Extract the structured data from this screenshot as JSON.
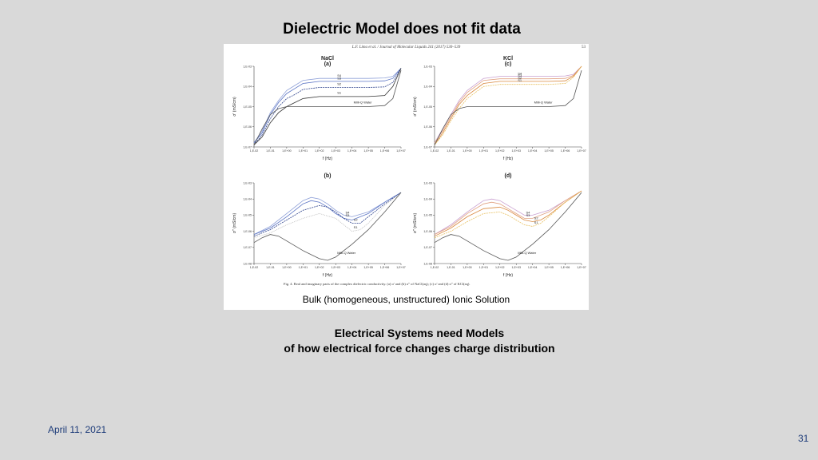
{
  "slide": {
    "title": "Dielectric Model does not fit data",
    "date": "April 11, 2021",
    "number": "31"
  },
  "figure": {
    "journal_header": "L.F. Lima et al. / Journal of Molecular Liquids 241 (2017) 530–539",
    "page": "53",
    "caption": "Fig. 4. Real and imaginary parts of the complex dielectric conductivity. (a) σ' and (b) σ'' of NaCl(aq); (c) σ' and (d) σ'' of KCl(aq).",
    "subcaption": "Bulk (homogeneous, unstructured) Ionic Solution"
  },
  "statement": {
    "line1": "Electrical Systems need Models",
    "line2": "of how electrical force changes charge distribution"
  },
  "colors": {
    "background": "#d9d9d9",
    "text_blue": "#1f3d7a",
    "nacl_series": "#5b74c4",
    "kcl_series": "#d9893f",
    "water": "#555555"
  },
  "chart_data": [
    {
      "type": "line",
      "panel": "(a)",
      "title": "NaCl",
      "xlabel": "f (Hz)",
      "ylabel": "σ' (mS/cm)",
      "x_scale": "log",
      "y_scale": "log",
      "xticks": [
        "1,E-02",
        "1,E-01",
        "1,E+00",
        "1,E+01",
        "1,E+02",
        "1,E+03",
        "1,E+04",
        "1,E+05",
        "1,E+06",
        "1,E+07"
      ],
      "yticks": [
        "1,E-07",
        "1,E-06",
        "1,E-05",
        "1,E-04",
        "1,E-03"
      ],
      "xlim": [
        -2,
        7
      ],
      "ylim": [
        -7,
        -3
      ],
      "series": [
        {
          "name": "S4",
          "color": "#8ea0d8",
          "dash": "",
          "x": [
            -2,
            -1.5,
            -1,
            -0.5,
            0,
            0.5,
            1,
            2,
            3,
            4,
            5,
            6,
            6.5,
            7
          ],
          "y": [
            -6.8,
            -6.2,
            -5.3,
            -4.7,
            -4.2,
            -3.95,
            -3.7,
            -3.6,
            -3.6,
            -3.6,
            -3.6,
            -3.58,
            -3.5,
            -3.1
          ]
        },
        {
          "name": "S3",
          "color": "#5b74c4",
          "dash": "",
          "x": [
            -2,
            -1.5,
            -1,
            -0.5,
            0,
            0.5,
            1,
            2,
            3,
            4,
            5,
            6,
            6.5,
            7
          ],
          "y": [
            -6.8,
            -6.3,
            -5.4,
            -4.8,
            -4.35,
            -4.1,
            -3.85,
            -3.75,
            -3.75,
            -3.75,
            -3.75,
            -3.72,
            -3.6,
            -3.1
          ]
        },
        {
          "name": "S2",
          "color": "#2a3f8a",
          "dash": "2,1",
          "x": [
            -2,
            -1.5,
            -1,
            -0.5,
            0,
            0.5,
            1,
            2,
            3,
            4,
            5,
            6,
            6.5,
            7
          ],
          "y": [
            -6.9,
            -6.4,
            -5.6,
            -5.0,
            -4.6,
            -4.4,
            -4.15,
            -4.05,
            -4.05,
            -4.05,
            -4.05,
            -4.02,
            -3.8,
            -3.1
          ]
        },
        {
          "name": "S1",
          "color": "#333333",
          "dash": "",
          "x": [
            -2,
            -1.5,
            -1,
            -0.5,
            0,
            0.5,
            1,
            2,
            3,
            4,
            5,
            6,
            6.5,
            7
          ],
          "y": [
            -6.9,
            -6.5,
            -5.8,
            -5.3,
            -5.0,
            -4.8,
            -4.6,
            -4.5,
            -4.5,
            -4.5,
            -4.5,
            -4.45,
            -4.0,
            -3.1
          ]
        },
        {
          "name": "Milli-Q Water",
          "color": "#555555",
          "dash": "",
          "x": [
            -2,
            -1.5,
            -1,
            -0.5,
            0,
            1,
            2,
            3,
            4,
            5,
            6,
            6.5,
            7
          ],
          "y": [
            -6.9,
            -6.1,
            -5.4,
            -5.1,
            -5.0,
            -5.0,
            -5.0,
            -5.0,
            -5.0,
            -5.0,
            -4.95,
            -4.6,
            -3.2
          ]
        }
      ]
    },
    {
      "type": "line",
      "panel": "(c)",
      "title": "KCl",
      "xlabel": "f (Hz)",
      "ylabel": "σ' (mS/cm)",
      "x_scale": "log",
      "y_scale": "log",
      "xticks": [
        "1,E-02",
        "1,E-01",
        "1,E+00",
        "1,E+01",
        "1,E+02",
        "1,E+03",
        "1,E+04",
        "1,E+05",
        "1,E+06",
        "1,E+07"
      ],
      "yticks": [
        "1,E-07",
        "1,E-06",
        "1,E-05",
        "1,E-04",
        "1,E-03"
      ],
      "xlim": [
        -2,
        7
      ],
      "ylim": [
        -7,
        -3
      ],
      "series": [
        {
          "name": "S4",
          "color": "#c9a0d0",
          "dash": "",
          "x": [
            -2,
            -1.5,
            -1,
            -0.5,
            0,
            0.5,
            1,
            2,
            3,
            4,
            5,
            6,
            6.5,
            7
          ],
          "y": [
            -6.8,
            -6.1,
            -5.4,
            -4.7,
            -4.2,
            -3.9,
            -3.6,
            -3.5,
            -3.5,
            -3.5,
            -3.5,
            -3.48,
            -3.4,
            -3.0
          ]
        },
        {
          "name": "S3",
          "color": "#e0a080",
          "dash": "",
          "x": [
            -2,
            -1.5,
            -1,
            -0.5,
            0,
            0.5,
            1,
            2,
            3,
            4,
            5,
            6,
            6.5,
            7
          ],
          "y": [
            -6.8,
            -6.2,
            -5.5,
            -4.8,
            -4.3,
            -4.0,
            -3.7,
            -3.62,
            -3.62,
            -3.62,
            -3.62,
            -3.6,
            -3.45,
            -3.0
          ]
        },
        {
          "name": "S2",
          "color": "#d9893f",
          "dash": "",
          "x": [
            -2,
            -1.5,
            -1,
            -0.5,
            0,
            0.5,
            1,
            2,
            3,
            4,
            5,
            6,
            6.5,
            7
          ],
          "y": [
            -6.9,
            -6.3,
            -5.6,
            -4.9,
            -4.45,
            -4.15,
            -3.85,
            -3.75,
            -3.75,
            -3.75,
            -3.75,
            -3.72,
            -3.5,
            -3.0
          ]
        },
        {
          "name": "S1",
          "color": "#e8c060",
          "dash": "2,1",
          "x": [
            -2,
            -1.5,
            -1,
            -0.5,
            0,
            0.5,
            1,
            2,
            3,
            4,
            5,
            6,
            6.5,
            7
          ],
          "y": [
            -6.9,
            -6.4,
            -5.7,
            -5.1,
            -4.6,
            -4.3,
            -4.0,
            -3.9,
            -3.9,
            -3.9,
            -3.9,
            -3.85,
            -3.55,
            -3.0
          ]
        },
        {
          "name": "Milli-Q Water",
          "color": "#555555",
          "dash": "",
          "x": [
            -2,
            -1.5,
            -1,
            -0.5,
            0,
            1,
            2,
            3,
            4,
            5,
            6,
            6.5,
            7
          ],
          "y": [
            -6.9,
            -6.1,
            -5.4,
            -5.1,
            -5.0,
            -5.0,
            -5.0,
            -5.0,
            -5.0,
            -5.0,
            -4.95,
            -4.6,
            -3.2
          ]
        }
      ]
    },
    {
      "type": "line",
      "panel": "(b)",
      "title": "",
      "xlabel": "f (Hz)",
      "ylabel": "σ'' (mS/cm)",
      "x_scale": "log",
      "y_scale": "log",
      "xticks": [
        "1,E-02",
        "1,E-01",
        "1,E+00",
        "1,E+01",
        "1,E+02",
        "1,E+03",
        "1,E+04",
        "1,E+05",
        "1,E+06",
        "1,E+07"
      ],
      "yticks": [
        "1,E-08",
        "1,E-07",
        "1,E-06",
        "1,E-05",
        "1,E-04",
        "1,E-03"
      ],
      "xlim": [
        -2,
        7
      ],
      "ylim": [
        -8,
        -3
      ],
      "series": [
        {
          "name": "S4",
          "color": "#8ea0d8",
          "dash": "",
          "x": [
            -2,
            -1,
            0,
            1,
            1.5,
            2,
            2.5,
            3,
            3.5,
            4,
            5,
            6,
            7
          ],
          "y": [
            -6.2,
            -5.7,
            -4.9,
            -4.1,
            -3.9,
            -4.0,
            -4.3,
            -4.7,
            -5.0,
            -5.1,
            -4.8,
            -4.2,
            -3.6
          ]
        },
        {
          "name": "S3",
          "color": "#5b74c4",
          "dash": "",
          "x": [
            -2,
            -1,
            0,
            1,
            1.5,
            2,
            2.5,
            3,
            3.5,
            4,
            5,
            6,
            7
          ],
          "y": [
            -6.2,
            -5.8,
            -5.1,
            -4.3,
            -4.1,
            -4.2,
            -4.5,
            -4.9,
            -5.2,
            -5.3,
            -4.9,
            -4.2,
            -3.6
          ]
        },
        {
          "name": "S2",
          "color": "#2a3f8a",
          "dash": "2,1",
          "x": [
            -2,
            -1,
            0,
            1,
            2,
            2.5,
            3,
            3.5,
            4,
            4.5,
            5,
            6,
            7
          ],
          "y": [
            -6.3,
            -5.9,
            -5.3,
            -4.7,
            -4.4,
            -4.5,
            -4.8,
            -5.2,
            -5.5,
            -5.5,
            -5.1,
            -4.3,
            -3.6
          ]
        },
        {
          "name": "S1",
          "color": "#bbbbbb",
          "dash": "1,1",
          "x": [
            -2,
            -1,
            0,
            1,
            2,
            3,
            3.5,
            4,
            4.5,
            5,
            6,
            7
          ],
          "y": [
            -6.4,
            -6.1,
            -5.6,
            -5.2,
            -4.9,
            -5.2,
            -5.6,
            -6.0,
            -5.9,
            -5.5,
            -4.4,
            -3.6
          ]
        },
        {
          "name": "Milli-Q Water",
          "color": "#555555",
          "dash": "",
          "x": [
            -2,
            -1.5,
            -1,
            -0.5,
            0,
            1,
            2,
            2.5,
            3,
            3.5,
            4,
            5,
            6,
            7
          ],
          "y": [
            -6.7,
            -6.4,
            -6.2,
            -6.3,
            -6.6,
            -7.2,
            -7.7,
            -7.8,
            -7.6,
            -7.2,
            -6.8,
            -5.9,
            -4.8,
            -3.6
          ]
        }
      ]
    },
    {
      "type": "line",
      "panel": "(d)",
      "title": "",
      "xlabel": "f (Hz)",
      "ylabel": "σ'' (mS/cm)",
      "x_scale": "log",
      "y_scale": "log",
      "xticks": [
        "1,E-02",
        "1,E-01",
        "1,E+00",
        "1,E+01",
        "1,E+02",
        "1,E+03",
        "1,E+04",
        "1,E+05",
        "1,E+06",
        "1,E+07"
      ],
      "yticks": [
        "1,E-08",
        "1,E-07",
        "1,E-06",
        "1,E-05",
        "1,E-04",
        "1,E-03"
      ],
      "xlim": [
        -2,
        7
      ],
      "ylim": [
        -8,
        -3
      ],
      "series": [
        {
          "name": "S4",
          "color": "#c9a0d0",
          "dash": "",
          "x": [
            -2,
            -1,
            0,
            1,
            1.5,
            2,
            2.5,
            3,
            3.5,
            4,
            5,
            6,
            7
          ],
          "y": [
            -6.2,
            -5.6,
            -4.8,
            -4.1,
            -4.0,
            -4.1,
            -4.4,
            -4.7,
            -5.0,
            -5.0,
            -4.7,
            -4.1,
            -3.5
          ]
        },
        {
          "name": "S3",
          "color": "#e0a080",
          "dash": "",
          "x": [
            -2,
            -1,
            0,
            1,
            1.5,
            2,
            2.5,
            3,
            3.5,
            4,
            5,
            6,
            7
          ],
          "y": [
            -6.2,
            -5.7,
            -4.9,
            -4.3,
            -4.2,
            -4.3,
            -4.6,
            -4.9,
            -5.2,
            -5.2,
            -4.8,
            -4.1,
            -3.5
          ]
        },
        {
          "name": "S2",
          "color": "#d9893f",
          "dash": "",
          "x": [
            -2,
            -1,
            0,
            1,
            2,
            2.5,
            3,
            3.5,
            4,
            4.5,
            5,
            6,
            7
          ],
          "y": [
            -6.3,
            -5.8,
            -5.1,
            -4.6,
            -4.5,
            -4.7,
            -5.0,
            -5.3,
            -5.4,
            -5.3,
            -5.0,
            -4.2,
            -3.5
          ]
        },
        {
          "name": "S1",
          "color": "#e8c060",
          "dash": "2,1",
          "x": [
            -2,
            -1,
            0,
            1,
            2,
            2.5,
            3,
            3.5,
            4,
            4.5,
            5,
            6,
            7
          ],
          "y": [
            -6.4,
            -6.0,
            -5.4,
            -4.9,
            -4.8,
            -5.0,
            -5.3,
            -5.6,
            -5.7,
            -5.5,
            -5.1,
            -4.2,
            -3.5
          ]
        },
        {
          "name": "Milli-Q Water",
          "color": "#555555",
          "dash": "",
          "x": [
            -2,
            -1.5,
            -1,
            -0.5,
            0,
            1,
            2,
            2.5,
            3,
            3.5,
            4,
            5,
            6,
            7
          ],
          "y": [
            -6.7,
            -6.4,
            -6.2,
            -6.3,
            -6.6,
            -7.2,
            -7.7,
            -7.8,
            -7.6,
            -7.2,
            -6.8,
            -5.9,
            -4.8,
            -3.6
          ]
        }
      ]
    }
  ]
}
